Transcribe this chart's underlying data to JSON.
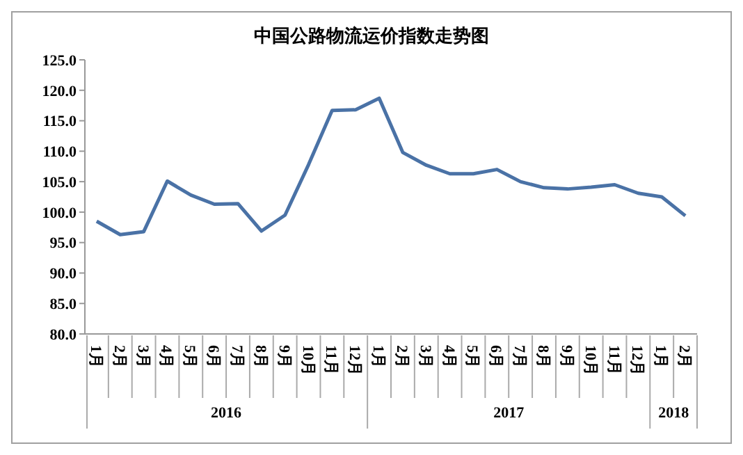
{
  "chart_data": {
    "type": "line",
    "title": "中国公路物流运价指数走势图",
    "categories": [
      "1月",
      "2月",
      "3月",
      "4月",
      "5月",
      "6月",
      "7月",
      "8月",
      "9月",
      "10月",
      "11月",
      "12月",
      "1月",
      "2月",
      "3月",
      "4月",
      "5月",
      "6月",
      "7月",
      "8月",
      "9月",
      "10月",
      "11月",
      "12月",
      "1月",
      "2月"
    ],
    "series": [
      {
        "color": "#4a72a6",
        "values": [
          98.5,
          96.3,
          96.8,
          105.1,
          102.8,
          101.3,
          101.4,
          96.9,
          99.5,
          107.8,
          116.7,
          116.8,
          118.7,
          109.8,
          107.7,
          106.3,
          106.3,
          107.0,
          105.0,
          104.0,
          103.8,
          104.1,
          104.5,
          103.1,
          102.5,
          99.4
        ]
      }
    ],
    "annotations": [
      "2016",
      "2017",
      "2018"
    ],
    "ylim": [
      80,
      125
    ],
    "yticks": [
      {
        "value": 80,
        "label": "80.0"
      },
      {
        "value": 85,
        "label": "85.0"
      },
      {
        "value": 90,
        "label": "90.0"
      },
      {
        "value": 95,
        "label": "95.0"
      },
      {
        "value": 100,
        "label": "100.0"
      },
      {
        "value": 105,
        "label": "105.0"
      },
      {
        "value": 110,
        "label": "110.0"
      },
      {
        "value": 115,
        "label": "115.0"
      },
      {
        "value": 120,
        "label": "120.0"
      },
      {
        "value": 125,
        "label": "125.0"
      }
    ],
    "grid": false,
    "legend": false,
    "marker": "none",
    "line_style": "solid"
  }
}
